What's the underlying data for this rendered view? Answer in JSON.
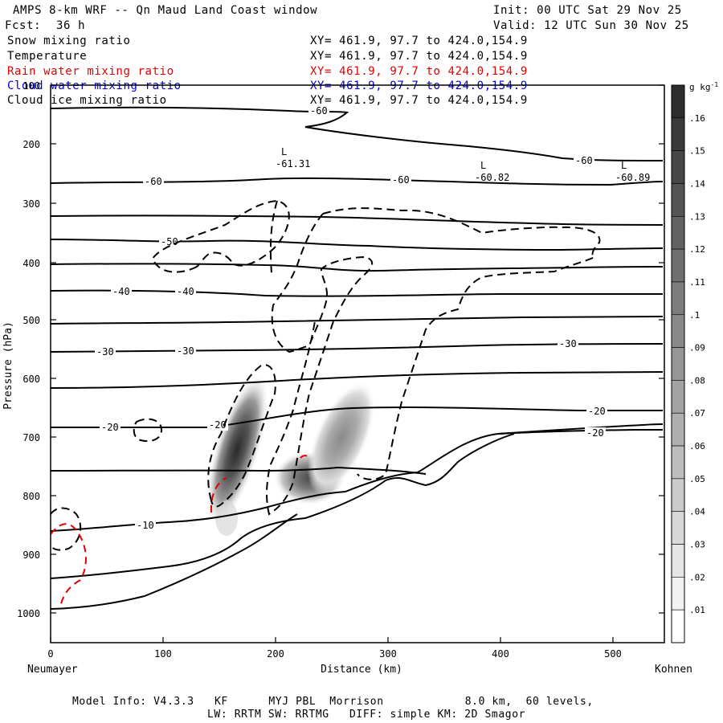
{
  "header": {
    "title": "AMPS 8-km WRF -- Qn Maud Land Coast window",
    "forecast_label": "Fcst:",
    "forecast_value": "36 h",
    "init": "Init: 00 UTC Sat 29 Nov 25",
    "valid": "Valid: 12 UTC Sun 30 Nov 25"
  },
  "legend": [
    {
      "name": "Snow mixing ratio",
      "coords": "XY= 461.9, 97.7 to 424.0,154.9",
      "color": "#000000"
    },
    {
      "name": "Temperature",
      "coords": "XY= 461.9, 97.7 to 424.0,154.9",
      "color": "#000000"
    },
    {
      "name": "Rain water mixing ratio",
      "coords": "XY= 461.9, 97.7 to 424.0,154.9",
      "color": "#e00000"
    },
    {
      "name": "Cloud water mixing ratio",
      "coords": "XY= 461.9, 97.7 to 424.0,154.9",
      "color": "#0000cc"
    },
    {
      "name": "Cloud ice mixing ratio",
      "coords": "XY= 461.9, 97.7 to 424.0,154.9",
      "color": "#000000"
    }
  ],
  "footer": {
    "line1": "Model Info: V4.3.3   KF      MYJ PBL  Morrison            8.0 km,  60 levels,",
    "line2": "LW: RRTM SW: RRTMG   DIFF: simple KM: 2D Smagor"
  },
  "chart_data": {
    "type": "cross-section",
    "title": "AMPS 8-km WRF -- Qn Maud Land Coast window",
    "xlabel": "Distance (km)",
    "ylabel": "Pressure (hPa)",
    "xlim": [
      0,
      547
    ],
    "ylim": [
      1050,
      100
    ],
    "x_ticks": [
      0,
      100,
      200,
      300,
      400,
      500
    ],
    "y_ticks": [
      100,
      200,
      300,
      400,
      500,
      600,
      700,
      800,
      900,
      1000
    ],
    "y_tick_labels": [
      "100",
      "200",
      "300",
      "400",
      "500",
      "600",
      "700",
      "800",
      "900",
      "1000"
    ],
    "endpoints": {
      "left": "Neumayer",
      "right": "Kohnen"
    },
    "colorbar": {
      "unit": "g kg",
      "unit_exp": "-1",
      "levels": [
        0.01,
        0.02,
        0.03,
        0.04,
        0.05,
        0.06,
        0.07,
        0.08,
        0.09,
        0.1,
        0.11,
        0.12,
        0.13,
        0.14,
        0.15,
        0.16
      ],
      "labels": [
        ".01",
        ".02",
        ".03",
        ".04",
        ".05",
        ".06",
        ".07",
        ".08",
        ".09",
        ".1",
        ".11",
        ".12",
        ".13",
        ".14",
        ".15",
        ".16"
      ]
    },
    "temperature_labels": [
      {
        "text": "-60",
        "x": 235,
        "p": 136
      },
      {
        "text": "-60",
        "x": 90,
        "p": 262
      },
      {
        "text": "-60",
        "x": 311,
        "p": 261
      },
      {
        "text": "-60",
        "x": 473,
        "p": 214
      },
      {
        "text": "-50",
        "x": 105,
        "p": 378
      },
      {
        "text": "-40",
        "x": 64,
        "p": 448
      },
      {
        "text": "-40",
        "x": 120,
        "p": 448
      },
      {
        "text": "-30",
        "x": 50,
        "p": 552
      },
      {
        "text": "-30",
        "x": 120,
        "p": 550
      },
      {
        "text": "-30",
        "x": 460,
        "p": 540
      },
      {
        "text": "-20",
        "x": 53,
        "p": 680
      },
      {
        "text": "-20",
        "x": 150,
        "p": 672
      },
      {
        "text": "-20",
        "x": 490,
        "p": 652
      },
      {
        "text": "-20",
        "x": 505,
        "p": 695
      },
      {
        "text": "-10",
        "x": 80,
        "p": 862
      }
    ],
    "lows": [
      {
        "mark": "L",
        "value": "-61.31",
        "x": 222,
        "p": 212
      },
      {
        "mark": "L",
        "value": "-60.82",
        "x": 395,
        "p": 234
      },
      {
        "mark": "L",
        "value": "-60.89",
        "x": 520,
        "p": 234
      }
    ],
    "snow_maxima": [
      {
        "x": 165,
        "p": 760,
        "value": 0.16
      },
      {
        "x": 230,
        "p": 810,
        "value": 0.13
      },
      {
        "x": 270,
        "p": 735,
        "value": 0.1
      }
    ]
  }
}
